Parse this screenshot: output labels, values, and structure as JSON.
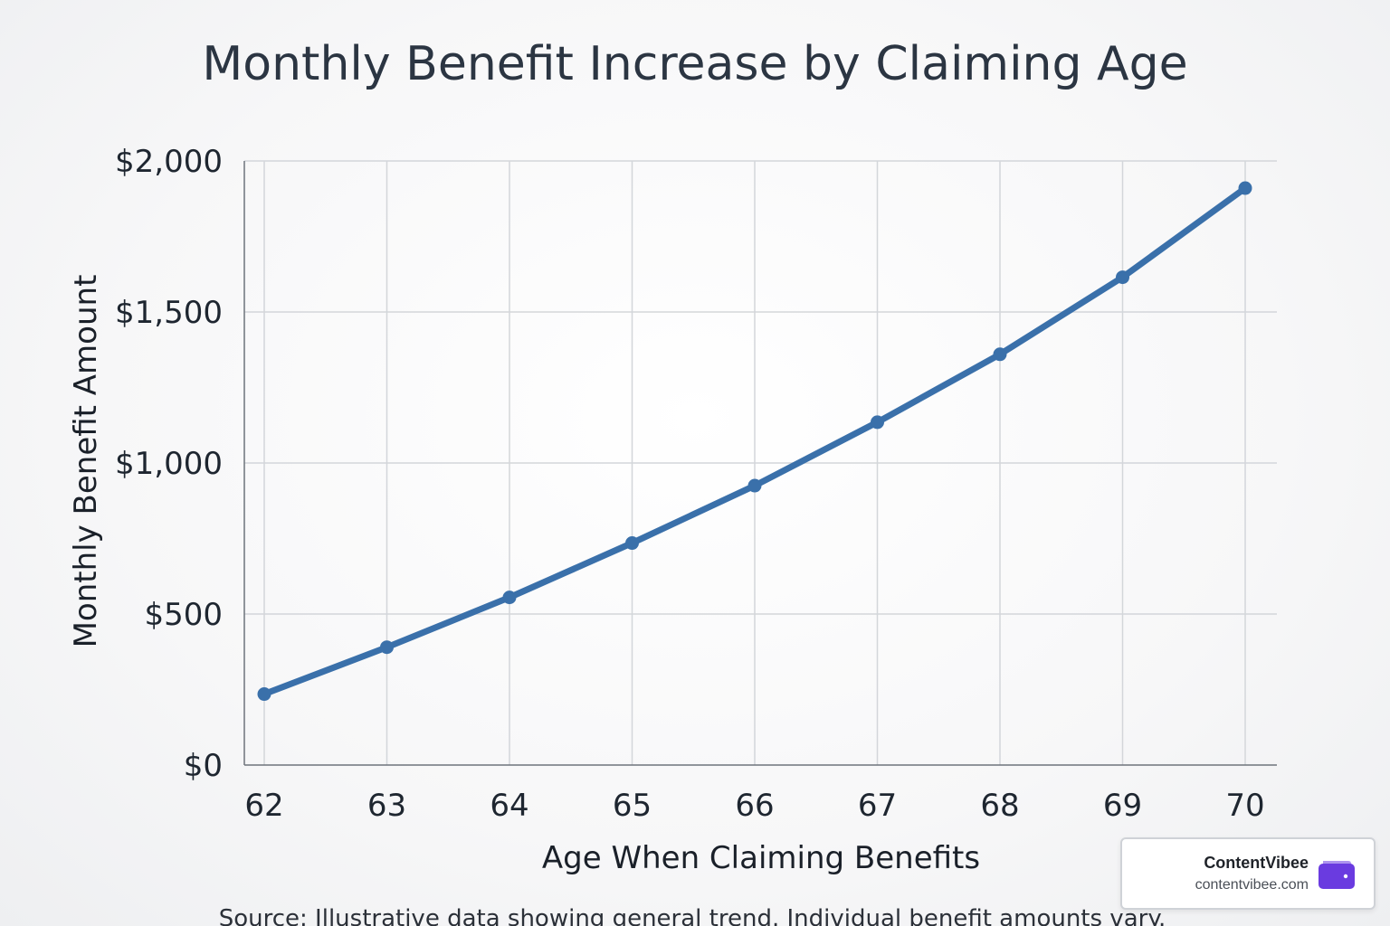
{
  "chart_data": {
    "type": "line",
    "title": "Monthly Benefit Increase by Claiming Age",
    "xlabel": "Age When Claiming Benefits",
    "ylabel": "Monthly Benefit Amount",
    "categories": [
      "62",
      "63",
      "64",
      "65",
      "66",
      "67",
      "68",
      "69",
      "70"
    ],
    "x": [
      62,
      63,
      64,
      65,
      66,
      67,
      68,
      69,
      70
    ],
    "series": [
      {
        "values": [
          235,
          390,
          555,
          735,
          925,
          1135,
          1360,
          1615,
          1910
        ],
        "color": "#3a70aa"
      }
    ],
    "ylim": [
      0,
      2000
    ],
    "y_ticks": [
      0,
      500,
      1000,
      1500,
      2000
    ],
    "y_tick_labels": [
      "$0",
      "$500",
      "$1,000",
      "$1,500",
      "$2,000"
    ],
    "grid": true,
    "legend": "none",
    "source_note": "Source: Illustrative data showing general trend. Individual benefit amounts vary."
  },
  "brand": {
    "name": "ContentVibee",
    "url": "contentvibee.com",
    "icon": "wallet-icon",
    "icon_color": "#6a3be0"
  }
}
